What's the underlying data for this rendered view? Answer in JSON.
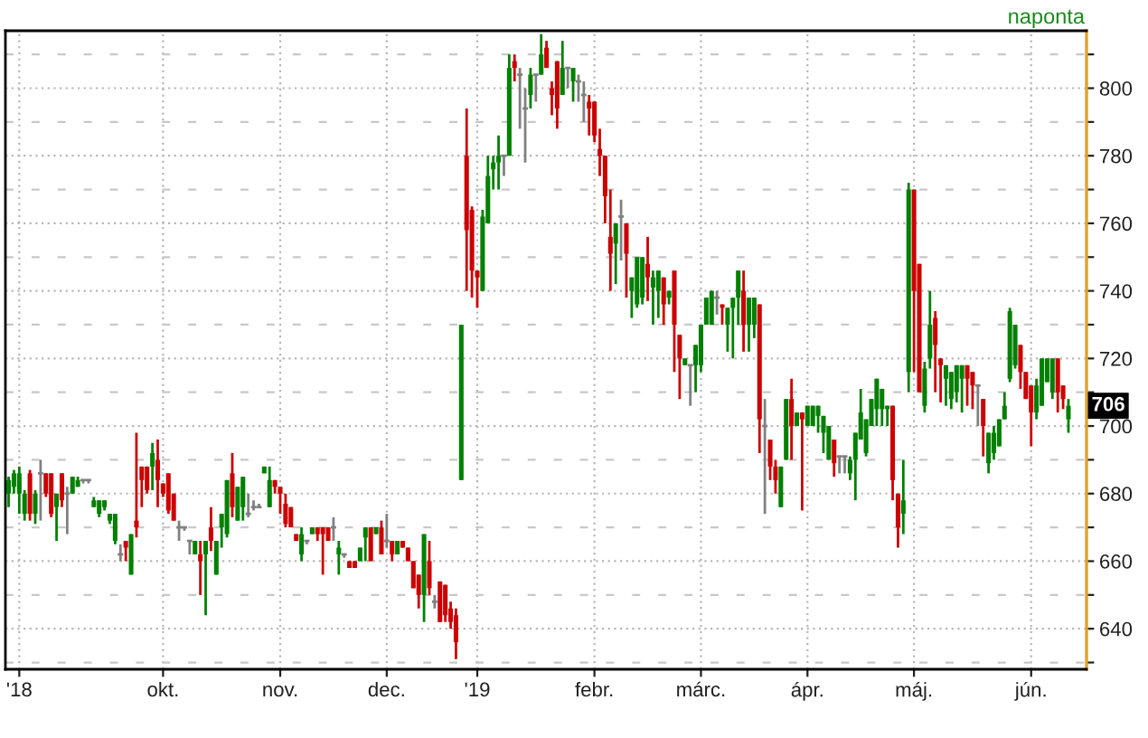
{
  "chart_data": {
    "type": "candlestick",
    "subtitle": "naponta",
    "categories": [
      null,
      null,
      "'18",
      null,
      null,
      null,
      null,
      null,
      null,
      null,
      null,
      null,
      null,
      null,
      null,
      null,
      null,
      null,
      null,
      null,
      null,
      null,
      null,
      null,
      null,
      null,
      null,
      null,
      null,
      "okt.",
      null,
      null,
      null,
      null,
      null,
      null,
      null,
      null,
      null,
      null,
      null,
      null,
      null,
      null,
      null,
      null,
      null,
      null,
      null,
      null,
      null,
      "nov.",
      null,
      null,
      null,
      null,
      null,
      null,
      null,
      null,
      null,
      null,
      null,
      null,
      null,
      null,
      null,
      null,
      null,
      null,
      null,
      "dec.",
      null,
      null,
      null,
      null,
      null,
      null,
      null,
      null,
      null,
      null,
      null,
      null,
      null,
      null,
      null,
      null,
      "'19",
      null,
      null,
      null,
      null,
      null,
      null,
      null,
      null,
      null,
      null,
      null,
      null,
      null,
      null,
      null,
      null,
      null,
      null,
      null,
      null,
      null,
      "febr.",
      null,
      null,
      null,
      null,
      null,
      null,
      null,
      null,
      null,
      null,
      null,
      null,
      null,
      null,
      null,
      null,
      null,
      null,
      null,
      "márc.",
      null,
      null,
      null,
      null,
      null,
      null,
      null,
      null,
      null,
      null,
      null,
      null,
      null,
      null,
      null,
      null,
      null,
      null,
      null,
      "ápr.",
      null,
      null,
      null,
      null,
      null,
      null,
      null,
      null,
      null,
      null,
      null,
      null,
      null,
      null,
      null,
      null,
      null,
      null,
      null,
      "máj.",
      null,
      null,
      null,
      null,
      null,
      null,
      null,
      null,
      null,
      null,
      null,
      null,
      null,
      null,
      null,
      null,
      null,
      null,
      null,
      null,
      null,
      "jún.",
      null,
      null,
      null,
      null,
      null,
      null,
      null
    ],
    "ohlc": [
      [
        680,
        685,
        676,
        684
      ],
      [
        682,
        687,
        680,
        686
      ],
      [
        680,
        688,
        674,
        686
      ],
      [
        674,
        681,
        672,
        680
      ],
      [
        686,
        687,
        672,
        674
      ],
      [
        674,
        681,
        671,
        680
      ],
      [
        686,
        690,
        672,
        686
      ],
      [
        686,
        686,
        679,
        680
      ],
      [
        686,
        686,
        673,
        674
      ],
      [
        676,
        680,
        666,
        680
      ],
      [
        686,
        686,
        676,
        678
      ],
      [
        680,
        682,
        668,
        680
      ],
      [
        680,
        685,
        680,
        685
      ],
      [
        682,
        685,
        682,
        684
      ],
      [
        684,
        684,
        683,
        684
      ],
      [
        684,
        684,
        683,
        684
      ],
      [
        676,
        679,
        676,
        678
      ],
      [
        674,
        678,
        673,
        678
      ],
      [
        676,
        678,
        675,
        678
      ],
      [
        672,
        674,
        671,
        674
      ],
      [
        666,
        674,
        665,
        674
      ],
      [
        662,
        665,
        660,
        662
      ],
      [
        666,
        666,
        660,
        664
      ],
      [
        656,
        668,
        656,
        668
      ],
      [
        672,
        698,
        667,
        670
      ],
      [
        688,
        688,
        676,
        684
      ],
      [
        688,
        688,
        680,
        681
      ],
      [
        688,
        695,
        681,
        692
      ],
      [
        690,
        696,
        676,
        684
      ],
      [
        683,
        683,
        679,
        680
      ],
      [
        686,
        686,
        674,
        675
      ],
      [
        680,
        680,
        672,
        672
      ],
      [
        670,
        672,
        666,
        670
      ],
      [
        670,
        670,
        669,
        670
      ],
      [
        666,
        666,
        662,
        666
      ],
      [
        662,
        666,
        662,
        666
      ],
      [
        662,
        666,
        650,
        660
      ],
      [
        662,
        666,
        644,
        666
      ],
      [
        670,
        676,
        663,
        666
      ],
      [
        656,
        666,
        656,
        666
      ],
      [
        670,
        674,
        664,
        674
      ],
      [
        668,
        684,
        667,
        684
      ],
      [
        686,
        692,
        673,
        676
      ],
      [
        672,
        682,
        672,
        682
      ],
      [
        676,
        685,
        672,
        685
      ],
      [
        674,
        680,
        673,
        674
      ],
      [
        676,
        678,
        675,
        676
      ],
      [
        676,
        677,
        676,
        676
      ],
      [
        686,
        688,
        686,
        688
      ],
      [
        676,
        688,
        676,
        684
      ],
      [
        684,
        684,
        680,
        682
      ],
      [
        682,
        682,
        674,
        680
      ],
      [
        677,
        680,
        670,
        671
      ],
      [
        676,
        676,
        670,
        670
      ],
      [
        668,
        668,
        666,
        666
      ],
      [
        662,
        670,
        660,
        668
      ],
      [
        666,
        666,
        665,
        666
      ],
      [
        668,
        670,
        668,
        670
      ],
      [
        670,
        670,
        666,
        668
      ],
      [
        670,
        670,
        656,
        668
      ],
      [
        670,
        670,
        666,
        666
      ],
      [
        670,
        673,
        666,
        670
      ],
      [
        662,
        666,
        656,
        664
      ],
      [
        662,
        662,
        661,
        662
      ],
      [
        660,
        660,
        658,
        658
      ],
      [
        660,
        660,
        658,
        658
      ],
      [
        660,
        664,
        660,
        664
      ],
      [
        667,
        670,
        660,
        670
      ],
      [
        670,
        670,
        660,
        660
      ],
      [
        668,
        670,
        668,
        670
      ],
      [
        670,
        672,
        662,
        662
      ],
      [
        666,
        674,
        664,
        666
      ],
      [
        666,
        666,
        660,
        662
      ],
      [
        662,
        666,
        662,
        666
      ],
      [
        666,
        666,
        664,
        664
      ],
      [
        664,
        664,
        660,
        660
      ],
      [
        660,
        660,
        652,
        652
      ],
      [
        656,
        656,
        646,
        650
      ],
      [
        650,
        668,
        642,
        668
      ],
      [
        660,
        666,
        650,
        652
      ],
      [
        648,
        650,
        646,
        648
      ],
      [
        654,
        654,
        642,
        642
      ],
      [
        653,
        653,
        642,
        644
      ],
      [
        646,
        648,
        640,
        642
      ],
      [
        644,
        646,
        631,
        636
      ],
      [
        684,
        730,
        684,
        730
      ],
      [
        780,
        794,
        740,
        758
      ],
      [
        764,
        765,
        738,
        746
      ],
      [
        746,
        746,
        735,
        744
      ],
      [
        740,
        764,
        740,
        762
      ],
      [
        760,
        780,
        760,
        774
      ],
      [
        776,
        780,
        770,
        778
      ],
      [
        778,
        786,
        770,
        780
      ],
      [
        780,
        780,
        774,
        780
      ],
      [
        780,
        810,
        780,
        806
      ],
      [
        808,
        810,
        802,
        806
      ],
      [
        804,
        806,
        788,
        804
      ],
      [
        794,
        800,
        778,
        794
      ],
      [
        798,
        806,
        794,
        804
      ],
      [
        804,
        804,
        796,
        804
      ],
      [
        804,
        816,
        804,
        810
      ],
      [
        812,
        814,
        806,
        806
      ],
      [
        800,
        802,
        792,
        798
      ],
      [
        808,
        808,
        788,
        794
      ],
      [
        798,
        814,
        798,
        806
      ],
      [
        806,
        806,
        800,
        806
      ],
      [
        802,
        806,
        796,
        806
      ],
      [
        802,
        804,
        796,
        802
      ],
      [
        798,
        802,
        790,
        798
      ],
      [
        796,
        798,
        786,
        794
      ],
      [
        796,
        796,
        784,
        786
      ],
      [
        782,
        788,
        774,
        780
      ],
      [
        780,
        780,
        760,
        768
      ],
      [
        756,
        770,
        740,
        751
      ],
      [
        754,
        760,
        742,
        760
      ],
      [
        762,
        767,
        749,
        762
      ],
      [
        760,
        760,
        738,
        751
      ],
      [
        740,
        744,
        732,
        744
      ],
      [
        736,
        750,
        735,
        750
      ],
      [
        738,
        750,
        736,
        750
      ],
      [
        748,
        756,
        737,
        744
      ],
      [
        741,
        746,
        730,
        744
      ],
      [
        740,
        746,
        732,
        746
      ],
      [
        744,
        744,
        730,
        736
      ],
      [
        738,
        740,
        736,
        740
      ],
      [
        746,
        746,
        716,
        730
      ],
      [
        727,
        727,
        708,
        720
      ],
      [
        718,
        720,
        718,
        720
      ],
      [
        718,
        718,
        706,
        718
      ],
      [
        718,
        724,
        710,
        724
      ],
      [
        718,
        730,
        716,
        730
      ],
      [
        730,
        738,
        730,
        738
      ],
      [
        730,
        740,
        730,
        740
      ],
      [
        738,
        740,
        733,
        738
      ],
      [
        736,
        736,
        730,
        735
      ],
      [
        730,
        735,
        722,
        735
      ],
      [
        735,
        738,
        720,
        738
      ],
      [
        738,
        746,
        730,
        746
      ],
      [
        740,
        746,
        722,
        730
      ],
      [
        730,
        738,
        722,
        738
      ],
      [
        730,
        738,
        726,
        738
      ],
      [
        736,
        736,
        692,
        702
      ],
      [
        700,
        708,
        674,
        700
      ],
      [
        696,
        696,
        684,
        688
      ],
      [
        688,
        690,
        680,
        684
      ],
      [
        676,
        688,
        676,
        688
      ],
      [
        690,
        708,
        690,
        708
      ],
      [
        708,
        714,
        690,
        700
      ],
      [
        700,
        704,
        700,
        704
      ],
      [
        704,
        704,
        675,
        702
      ],
      [
        700,
        706,
        700,
        706
      ],
      [
        700,
        706,
        700,
        706
      ],
      [
        703,
        706,
        698,
        706
      ],
      [
        698,
        703,
        692,
        703
      ],
      [
        690,
        700,
        690,
        700
      ],
      [
        696,
        696,
        685,
        689
      ],
      [
        691,
        691,
        686,
        691
      ],
      [
        691,
        691,
        686,
        691
      ],
      [
        686,
        691,
        684,
        690
      ],
      [
        690,
        698,
        678,
        698
      ],
      [
        696,
        711,
        696,
        704
      ],
      [
        692,
        702,
        691,
        702
      ],
      [
        700,
        708,
        700,
        708
      ],
      [
        705,
        714,
        700,
        714
      ],
      [
        705,
        711,
        700,
        711
      ],
      [
        705,
        706,
        700,
        706
      ],
      [
        706,
        706,
        678,
        684
      ],
      [
        680,
        680,
        664,
        670
      ],
      [
        674,
        690,
        668,
        678
      ],
      [
        716,
        772,
        710,
        770
      ],
      [
        770,
        770,
        716,
        740
      ],
      [
        748,
        748,
        710,
        710
      ],
      [
        706,
        719,
        704,
        717
      ],
      [
        720,
        740,
        717,
        730
      ],
      [
        732,
        734,
        710,
        724
      ],
      [
        720,
        720,
        707,
        718
      ],
      [
        714,
        718,
        706,
        718
      ],
      [
        708,
        716,
        705,
        716
      ],
      [
        710,
        718,
        707,
        718
      ],
      [
        714,
        718,
        704,
        718
      ],
      [
        718,
        718,
        706,
        714
      ],
      [
        716,
        716,
        705,
        712
      ],
      [
        712,
        712,
        700,
        712
      ],
      [
        708,
        708,
        691,
        700
      ],
      [
        689,
        698,
        686,
        698
      ],
      [
        692,
        700,
        690,
        698
      ],
      [
        694,
        702,
        694,
        702
      ],
      [
        702,
        710,
        702,
        706
      ],
      [
        714,
        735,
        713,
        734
      ],
      [
        718,
        730,
        717,
        730
      ],
      [
        724,
        724,
        711,
        716
      ],
      [
        716,
        716,
        708,
        708
      ],
      [
        712,
        712,
        694,
        704
      ],
      [
        704,
        714,
        702,
        712
      ],
      [
        706,
        720,
        706,
        720
      ],
      [
        713,
        720,
        713,
        720
      ],
      [
        710,
        720,
        708,
        720
      ],
      [
        720,
        720,
        704,
        710
      ],
      [
        712,
        712,
        705,
        708
      ],
      [
        702,
        708,
        698,
        706
      ]
    ],
    "colors": [
      "#008000",
      "#008000",
      "#008000",
      "#008000",
      "#cc0000",
      "#008000",
      "#808080",
      "#cc0000",
      "#cc0000",
      "#008000",
      "#cc0000",
      "#808080",
      "#008000",
      "#008000",
      "#808080",
      "#808080",
      "#008000",
      "#008000",
      "#008000",
      "#008000",
      "#008000",
      "#808080",
      "#cc0000",
      "#008000",
      "#cc0000",
      "#cc0000",
      "#cc0000",
      "#008000",
      "#cc0000",
      "#cc0000",
      "#cc0000",
      "#cc0000",
      "#808080",
      "#808080",
      "#808080",
      "#008000",
      "#cc0000",
      "#008000",
      "#cc0000",
      "#008000",
      "#008000",
      "#008000",
      "#cc0000",
      "#008000",
      "#008000",
      "#808080",
      "#808080",
      "#808080",
      "#008000",
      "#008000",
      "#cc0000",
      "#cc0000",
      "#cc0000",
      "#cc0000",
      "#cc0000",
      "#008000",
      "#808080",
      "#008000",
      "#cc0000",
      "#cc0000",
      "#cc0000",
      "#808080",
      "#008000",
      "#808080",
      "#cc0000",
      "#cc0000",
      "#008000",
      "#008000",
      "#cc0000",
      "#008000",
      "#cc0000",
      "#808080",
      "#cc0000",
      "#008000",
      "#cc0000",
      "#cc0000",
      "#cc0000",
      "#cc0000",
      "#008000",
      "#cc0000",
      "#808080",
      "#cc0000",
      "#cc0000",
      "#cc0000",
      "#cc0000",
      "#008000",
      "#cc0000",
      "#cc0000",
      "#cc0000",
      "#008000",
      "#008000",
      "#008000",
      "#008000",
      "#808080",
      "#008000",
      "#cc0000",
      "#808080",
      "#808080",
      "#008000",
      "#808080",
      "#008000",
      "#cc0000",
      "#cc0000",
      "#cc0000",
      "#008000",
      "#808080",
      "#008000",
      "#808080",
      "#808080",
      "#cc0000",
      "#cc0000",
      "#cc0000",
      "#cc0000",
      "#cc0000",
      "#008000",
      "#808080",
      "#cc0000",
      "#008000",
      "#008000",
      "#008000",
      "#cc0000",
      "#008000",
      "#008000",
      "#cc0000",
      "#008000",
      "#cc0000",
      "#cc0000",
      "#008000",
      "#808080",
      "#008000",
      "#008000",
      "#008000",
      "#008000",
      "#808080",
      "#cc0000",
      "#008000",
      "#008000",
      "#008000",
      "#cc0000",
      "#008000",
      "#008000",
      "#cc0000",
      "#808080",
      "#cc0000",
      "#cc0000",
      "#008000",
      "#008000",
      "#cc0000",
      "#008000",
      "#cc0000",
      "#008000",
      "#008000",
      "#008000",
      "#008000",
      "#008000",
      "#cc0000",
      "#808080",
      "#808080",
      "#008000",
      "#008000",
      "#008000",
      "#008000",
      "#008000",
      "#008000",
      "#008000",
      "#008000",
      "#cc0000",
      "#cc0000",
      "#008000",
      "#008000",
      "#cc0000",
      "#cc0000",
      "#008000",
      "#008000",
      "#cc0000",
      "#cc0000",
      "#008000",
      "#008000",
      "#008000",
      "#008000",
      "#cc0000",
      "#cc0000",
      "#808080",
      "#cc0000",
      "#008000",
      "#008000",
      "#008000",
      "#008000",
      "#008000",
      "#008000",
      "#cc0000",
      "#cc0000",
      "#cc0000",
      "#008000",
      "#008000",
      "#008000",
      "#008000",
      "#cc0000",
      "#cc0000",
      "#008000"
    ],
    "ylim": [
      628,
      817
    ],
    "yticks": [
      {
        "value": 630,
        "label": null
      },
      640,
      {
        "value": 650,
        "label": null
      },
      660,
      {
        "value": 670,
        "label": null
      },
      680,
      {
        "value": 690,
        "label": null
      },
      700,
      {
        "value": 710,
        "label": null
      },
      720,
      {
        "value": 730,
        "label": null
      },
      740,
      {
        "value": 750,
        "label": null
      },
      760,
      {
        "value": 770,
        "label": null
      },
      780,
      {
        "value": 790,
        "label": null
      },
      800,
      {
        "value": 810,
        "label": null
      }
    ],
    "grid": true,
    "annotations": [
      {
        "text": "706",
        "y": 706
      }
    ]
  }
}
